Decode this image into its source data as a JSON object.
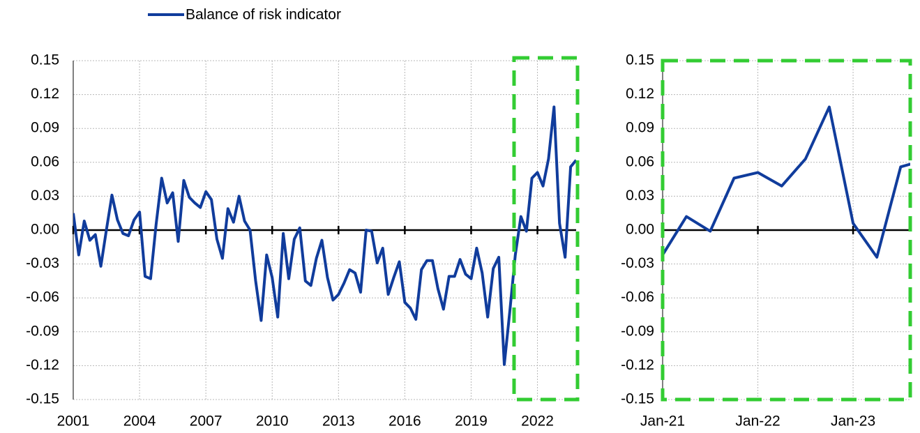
{
  "chart_data": [
    {
      "type": "line",
      "legend": true,
      "grid": true,
      "xlim": [
        2001,
        2023.75
      ],
      "xticks": [
        2001,
        2004,
        2007,
        2010,
        2013,
        2016,
        2019,
        2022
      ],
      "ylim": [
        -0.15,
        0.15
      ],
      "yticks": [
        0.15,
        0.12,
        0.09,
        0.06,
        0.03,
        {
          "value": 0,
          "label": "0.00"
        },
        -0.03,
        -0.06,
        -0.09,
        -0.12,
        -0.15
      ],
      "x": [
        2001,
        2001.25,
        2001.5,
        2001.75,
        2002,
        2002.25,
        2002.5,
        2002.75,
        2003,
        2003.25,
        2003.5,
        2003.75,
        2004,
        2004.25,
        2004.5,
        2004.75,
        2005,
        2005.25,
        2005.5,
        2005.75,
        2006,
        2006.25,
        2006.5,
        2006.75,
        2007,
        2007.25,
        2007.5,
        2007.75,
        2008,
        2008.25,
        2008.5,
        2008.75,
        2009,
        2009.25,
        2009.5,
        2009.75,
        2010,
        2010.25,
        2010.5,
        2010.75,
        2011,
        2011.25,
        2011.5,
        2011.75,
        2012,
        2012.25,
        2012.5,
        2012.75,
        2013,
        2013.25,
        2013.5,
        2013.75,
        2014,
        2014.25,
        2014.5,
        2014.75,
        2015,
        2015.25,
        2015.5,
        2015.75,
        2016,
        2016.25,
        2016.5,
        2016.75,
        2017,
        2017.25,
        2017.5,
        2017.75,
        2018,
        2018.25,
        2018.5,
        2018.75,
        2019,
        2019.25,
        2019.5,
        2019.75,
        2020,
        2020.25,
        2020.5,
        2020.75,
        2021,
        2021.25,
        2021.5,
        2021.75,
        2022,
        2022.25,
        2022.5,
        2022.75,
        2023,
        2023.25,
        2023.5,
        2023.75
      ],
      "series": [
        {
          "name": "Balance of risk indicator",
          "color": "#103c9c",
          "values": [
            0.015,
            -0.022,
            0.008,
            -0.009,
            -0.004,
            -0.032,
            0.0,
            0.031,
            0.009,
            -0.003,
            -0.005,
            0.009,
            0.016,
            -0.041,
            -0.043,
            0.005,
            0.046,
            0.024,
            0.033,
            -0.01,
            0.044,
            0.029,
            0.024,
            0.02,
            0.034,
            0.027,
            -0.008,
            -0.025,
            0.019,
            0.007,
            0.03,
            0.008,
            0.0,
            -0.045,
            -0.08,
            -0.022,
            -0.042,
            -0.077,
            -0.003,
            -0.043,
            -0.008,
            0.002,
            -0.045,
            -0.049,
            -0.025,
            -0.009,
            -0.042,
            -0.062,
            -0.057,
            -0.047,
            -0.035,
            -0.038,
            -0.055,
            0.0,
            -0.001,
            -0.029,
            -0.016,
            -0.057,
            -0.042,
            -0.028,
            -0.064,
            -0.069,
            -0.079,
            -0.035,
            -0.027,
            -0.027,
            -0.052,
            -0.07,
            -0.041,
            -0.041,
            -0.026,
            -0.039,
            -0.043,
            -0.016,
            -0.038,
            -0.077,
            -0.034,
            -0.024,
            -0.119,
            -0.072,
            -0.022,
            0.012,
            -0.001,
            0.046,
            0.051,
            0.039,
            0.063,
            0.109,
            0.006,
            -0.024,
            0.056,
            0.062
          ]
        }
      ]
    },
    {
      "type": "line",
      "grid": true,
      "xlim": [
        2021,
        2023.6
      ],
      "xticks": [
        {
          "value": 2021,
          "label": "Jan-21"
        },
        {
          "value": 2022,
          "label": "Jan-22"
        },
        {
          "value": 2023,
          "label": "Jan-23"
        }
      ],
      "ylim": [
        -0.15,
        0.15
      ],
      "yticks": [
        0.15,
        0.12,
        0.09,
        0.06,
        0.03,
        {
          "value": 0,
          "label": "0.00"
        },
        -0.03,
        -0.06,
        -0.09,
        -0.12,
        -0.15
      ],
      "x": [
        2021,
        2021.25,
        2021.5,
        2021.75,
        2022,
        2022.25,
        2022.5,
        2022.75,
        2023,
        2023.25,
        2023.5,
        2023.75
      ],
      "series": [
        {
          "color": "#103c9c",
          "values": [
            -0.022,
            0.012,
            -0.001,
            0.046,
            0.051,
            0.039,
            0.063,
            0.109,
            0.006,
            -0.024,
            0.056,
            0.062
          ]
        }
      ]
    }
  ]
}
